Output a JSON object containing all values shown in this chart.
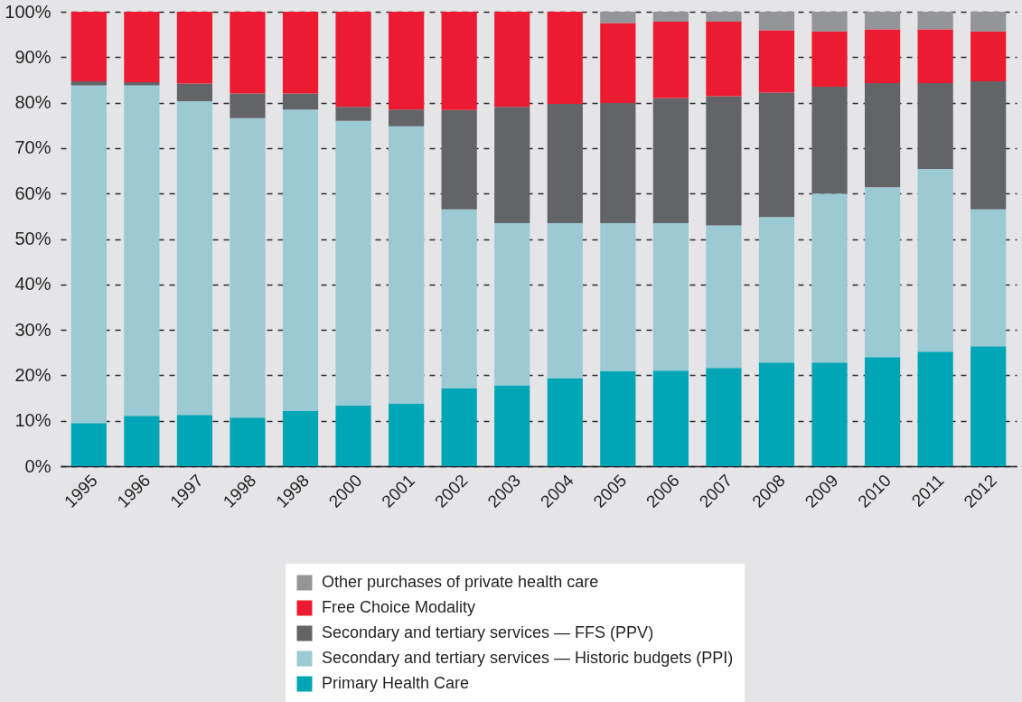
{
  "chart_data": {
    "type": "bar",
    "stacked": true,
    "categories": [
      "1995",
      "1996",
      "1997",
      "1998",
      "1998",
      "2000",
      "2001",
      "2002",
      "2003",
      "2004",
      "2005",
      "2006",
      "2007",
      "2008",
      "2009",
      "2010",
      "2011",
      "2012"
    ],
    "series": [
      {
        "name": "Primary Health Care",
        "color": "#00a6b6",
        "values": [
          9.5,
          11.1,
          11.3,
          10.7,
          12.2,
          13.3,
          13.7,
          17.1,
          17.8,
          19.4,
          20.9,
          21.0,
          21.6,
          22.8,
          22.8,
          24.0,
          25.2,
          26.4
        ]
      },
      {
        "name": "Secondary and tertiary services — Historic budgets (PPI)",
        "color": "#9bc9d4",
        "values": [
          74.3,
          72.7,
          69.0,
          65.9,
          66.3,
          62.7,
          61.1,
          39.4,
          35.7,
          34.1,
          32.6,
          32.5,
          31.4,
          32.0,
          37.2,
          37.4,
          40.2,
          30.1
        ]
      },
      {
        "name": "Secondary and tertiary services — FFS (PPV)",
        "color": "#636467",
        "values": [
          0.9,
          0.7,
          3.9,
          5.4,
          3.5,
          3.1,
          3.7,
          21.9,
          25.6,
          26.2,
          26.4,
          27.5,
          28.4,
          27.4,
          23.5,
          22.9,
          18.9,
          28.2
        ]
      },
      {
        "name": "Free Choice Modality",
        "color": "#ed1b32",
        "values": [
          15.3,
          15.5,
          15.8,
          18.0,
          18.0,
          20.9,
          21.5,
          21.6,
          20.9,
          20.3,
          17.6,
          16.8,
          16.4,
          13.7,
          12.2,
          11.8,
          11.8,
          11.0
        ]
      },
      {
        "name": "Other purchases of private health care",
        "color": "#939598",
        "values": [
          null,
          null,
          null,
          null,
          null,
          null,
          null,
          null,
          null,
          null,
          2.5,
          2.2,
          2.2,
          4.1,
          4.3,
          3.9,
          3.9,
          4.3
        ]
      }
    ],
    "ylim": [
      0,
      100
    ],
    "yticks": [
      {
        "value": 0,
        "label": "0%"
      },
      {
        "value": 10,
        "label": "10%"
      },
      {
        "value": 20,
        "label": "20%"
      },
      {
        "value": 30,
        "label": "30%"
      },
      {
        "value": 40,
        "label": "40%"
      },
      {
        "value": 50,
        "label": "50%"
      },
      {
        "value": 60,
        "label": "60%"
      },
      {
        "value": 70,
        "label": "70%"
      },
      {
        "value": 80,
        "label": "80%"
      },
      {
        "value": 90,
        "label": "90%"
      },
      {
        "value": 100,
        "label": "100%"
      }
    ],
    "grid": "y",
    "legend": "bottom"
  }
}
